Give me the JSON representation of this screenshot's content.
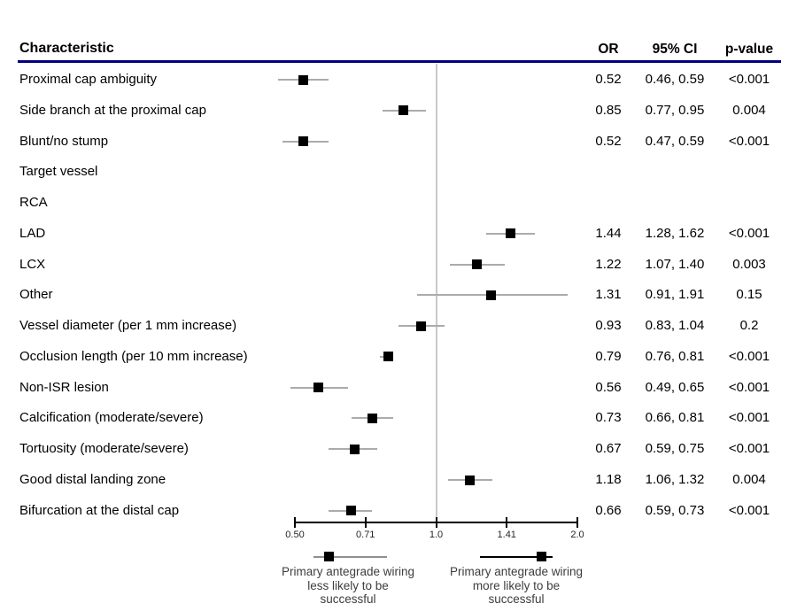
{
  "chart_data": {
    "type": "scatter",
    "subtype": "forest-plot",
    "columns": {
      "characteristic": "Characteristic",
      "or": "OR",
      "ci": "95% CI",
      "p": "p-value"
    },
    "x_axis": {
      "scale": "log2",
      "range": [
        0.5,
        2.0
      ],
      "ref_line": 1.0,
      "ticks": [
        {
          "label": "0.50",
          "value": 0.5
        },
        {
          "label": "0.71",
          "value": 0.7071
        },
        {
          "label": "1.0",
          "value": 1.0
        },
        {
          "label": "1.41",
          "value": 1.4142
        },
        {
          "label": "2.0",
          "value": 2.0
        }
      ]
    },
    "rows": [
      {
        "label": "Proximal cap ambiguity",
        "or": 0.52,
        "ci_low": 0.46,
        "ci_high": 0.59,
        "or_text": "0.52",
        "ci_text": "0.46, 0.59",
        "p_text": "<0.001"
      },
      {
        "label": "Side branch at the proximal cap",
        "or": 0.85,
        "ci_low": 0.77,
        "ci_high": 0.95,
        "or_text": "0.85",
        "ci_text": "0.77, 0.95",
        "p_text": "0.004"
      },
      {
        "label": "Blunt/no stump",
        "or": 0.52,
        "ci_low": 0.47,
        "ci_high": 0.59,
        "or_text": "0.52",
        "ci_text": "0.47, 0.59",
        "p_text": "<0.001"
      },
      {
        "label": "Target vessel"
      },
      {
        "label": "RCA"
      },
      {
        "label": "LAD",
        "or": 1.44,
        "ci_low": 1.28,
        "ci_high": 1.62,
        "or_text": "1.44",
        "ci_text": "1.28, 1.62",
        "p_text": "<0.001"
      },
      {
        "label": "LCX",
        "or": 1.22,
        "ci_low": 1.07,
        "ci_high": 1.4,
        "or_text": "1.22",
        "ci_text": "1.07, 1.40",
        "p_text": "0.003"
      },
      {
        "label": "Other",
        "or": 1.31,
        "ci_low": 0.91,
        "ci_high": 1.91,
        "or_text": "1.31",
        "ci_text": "0.91, 1.91",
        "p_text": "0.15"
      },
      {
        "label": "Vessel diameter (per 1 mm increase)",
        "or": 0.93,
        "ci_low": 0.83,
        "ci_high": 1.04,
        "or_text": "0.93",
        "ci_text": "0.83, 1.04",
        "p_text": "0.2"
      },
      {
        "label": "Occlusion length (per 10 mm increase)",
        "or": 0.79,
        "ci_low": 0.76,
        "ci_high": 0.81,
        "or_text": "0.79",
        "ci_text": "0.76, 0.81",
        "p_text": "<0.001"
      },
      {
        "label": "Non-ISR lesion",
        "or": 0.56,
        "ci_low": 0.49,
        "ci_high": 0.65,
        "or_text": "0.56",
        "ci_text": "0.49, 0.65",
        "p_text": "<0.001"
      },
      {
        "label": "Calcification (moderate/severe)",
        "or": 0.73,
        "ci_low": 0.66,
        "ci_high": 0.81,
        "or_text": "0.73",
        "ci_text": "0.66, 0.81",
        "p_text": "<0.001"
      },
      {
        "label": "Tortuosity (moderate/severe)",
        "or": 0.67,
        "ci_low": 0.59,
        "ci_high": 0.75,
        "or_text": "0.67",
        "ci_text": "0.59, 0.75",
        "p_text": "<0.001"
      },
      {
        "label": "Good distal landing zone",
        "or": 1.18,
        "ci_low": 1.06,
        "ci_high": 1.32,
        "or_text": "1.18",
        "ci_text": "1.06, 1.32",
        "p_text": "0.004"
      },
      {
        "label": "Bifurcation at the distal cap",
        "or": 0.66,
        "ci_low": 0.59,
        "ci_high": 0.73,
        "or_text": "0.66",
        "ci_text": "0.59, 0.73",
        "p_text": "<0.001"
      }
    ],
    "legend": {
      "left_text": "Primary antegrade wiring\nless likely to be\nsuccessful",
      "right_text": "Primary antegrade wiring\nmore likely to be\nsuccessful",
      "left_glyph": {
        "marker": 0.59,
        "lo": 0.548,
        "hi": 0.786,
        "line_color": "#8f8f8f"
      },
      "right_glyph": {
        "marker": 1.68,
        "lo": 1.24,
        "hi": 1.77,
        "line_color": "#000000"
      }
    }
  },
  "colors": {
    "header_rule": "#000080",
    "ref_line": "#c9c9c9",
    "ci_line": "#ababab",
    "marker": "#000000"
  }
}
